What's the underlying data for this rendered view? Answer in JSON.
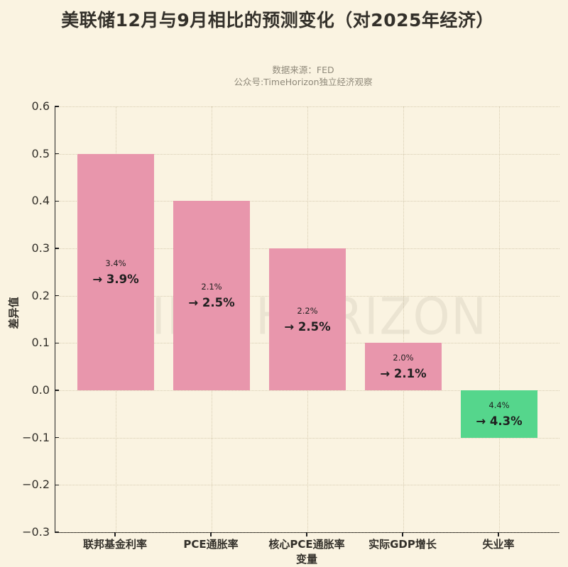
{
  "header": {
    "title": "美联储12月与9月相比的预测变化（对2025年经济）",
    "source_line": "数据来源：FED",
    "account_line": "公众号:TimeHorizon独立经济观察"
  },
  "watermark": "TIME HORIZON",
  "chart_data": {
    "type": "bar",
    "title": "美联储12月与9月相比的预测变化（对2025年经济）",
    "xlabel": "变量",
    "ylabel": "差异值",
    "categories": [
      "联邦基金利率",
      "PCE通胀率",
      "核心PCE通胀率",
      "实际GDP增长",
      "失业率"
    ],
    "values": [
      0.5,
      0.4,
      0.3,
      0.1,
      -0.1
    ],
    "bar_annotations": [
      {
        "september": "3.4%",
        "december": "→ 3.9%"
      },
      {
        "september": "2.1%",
        "december": "→ 2.5%"
      },
      {
        "september": "2.2%",
        "december": "→ 2.5%"
      },
      {
        "september": "2.0%",
        "december": "→ 2.1%"
      },
      {
        "september": "4.4%",
        "december": "→ 4.3%"
      }
    ],
    "ylim": [
      -0.3,
      0.6
    ],
    "yticks": [
      0.6,
      0.5,
      0.4,
      0.3,
      0.2,
      0.1,
      0.0,
      -0.1,
      -0.2,
      -0.3
    ],
    "grid": true,
    "legend": false,
    "colors": {
      "positive_bar": "#e896ac",
      "negative_bar": "#55d68c",
      "background": "#faf3e1",
      "text": "#33302a",
      "subtitle_text": "#8f897a",
      "bar_label_text": "#1f1f1f",
      "watermark": "#e0d8c6"
    }
  }
}
